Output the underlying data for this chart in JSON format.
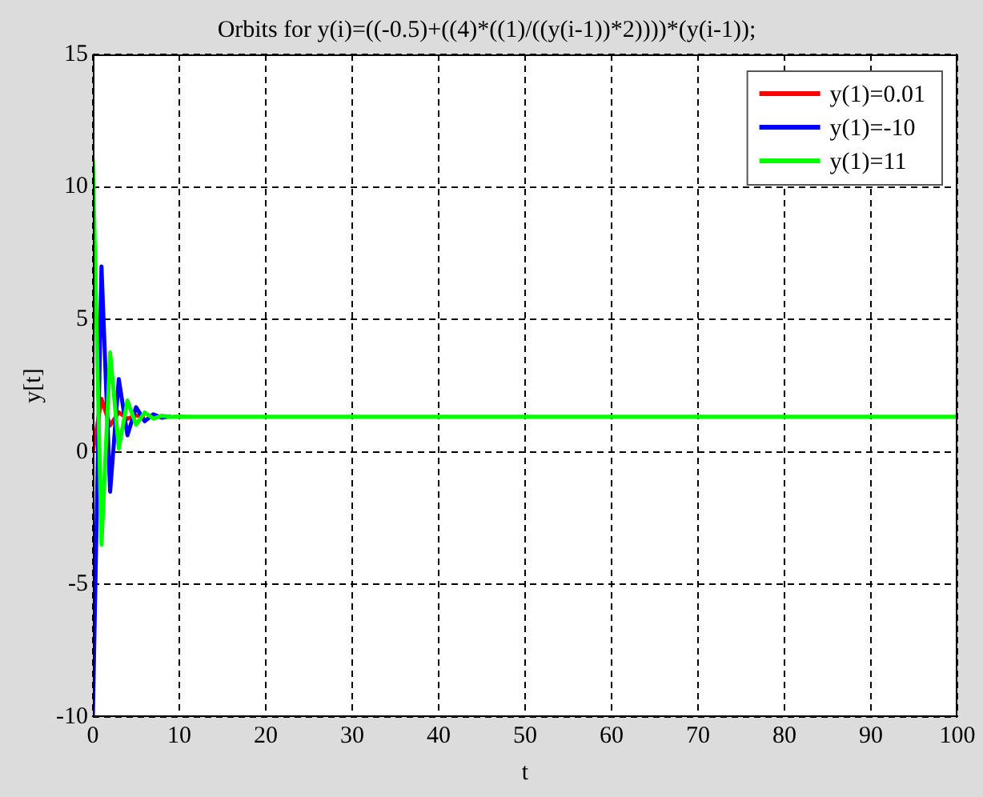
{
  "chart_data": {
    "type": "line",
    "title": "Orbits for y(i)=((-0.5)+((4)*((1)/((y(i-1))*2))))*(y(i-1));",
    "xlabel": "t",
    "ylabel": "y[t]",
    "series": [
      {
        "name": "y(1)=0.01",
        "color": "#ff0000",
        "x": [
          0,
          1,
          2,
          3,
          4,
          5,
          6
        ],
        "values": [
          0.01,
          2.0,
          1.0,
          1.5,
          1.25,
          1.38,
          1.31
        ]
      },
      {
        "name": "y(1)=-10",
        "color": "#0000ff",
        "x": [
          0,
          1,
          2,
          3,
          4,
          5,
          6,
          7,
          8,
          9
        ],
        "values": [
          -10,
          7,
          -1.5,
          2.75,
          0.63,
          1.69,
          1.16,
          1.42,
          1.29,
          1.35
        ]
      },
      {
        "name": "y(1)=11",
        "color": "#00ff00",
        "x": [
          0,
          1,
          2,
          3,
          4,
          5,
          6,
          7,
          8,
          9,
          10,
          11,
          100
        ],
        "values": [
          11,
          -3.5,
          3.75,
          0.13,
          1.94,
          1.03,
          1.49,
          1.26,
          1.37,
          1.32,
          1.34,
          1.33,
          1.33
        ]
      }
    ],
    "xlim": [
      0,
      100
    ],
    "xticks": [
      0,
      10,
      20,
      30,
      40,
      50,
      60,
      70,
      80,
      90,
      100
    ],
    "ylim": [
      -10,
      15
    ],
    "yticks": [
      -10,
      -5,
      0,
      5,
      10,
      15
    ],
    "grid": true,
    "legend": "top right",
    "line_style": "solid",
    "marker": "none"
  }
}
